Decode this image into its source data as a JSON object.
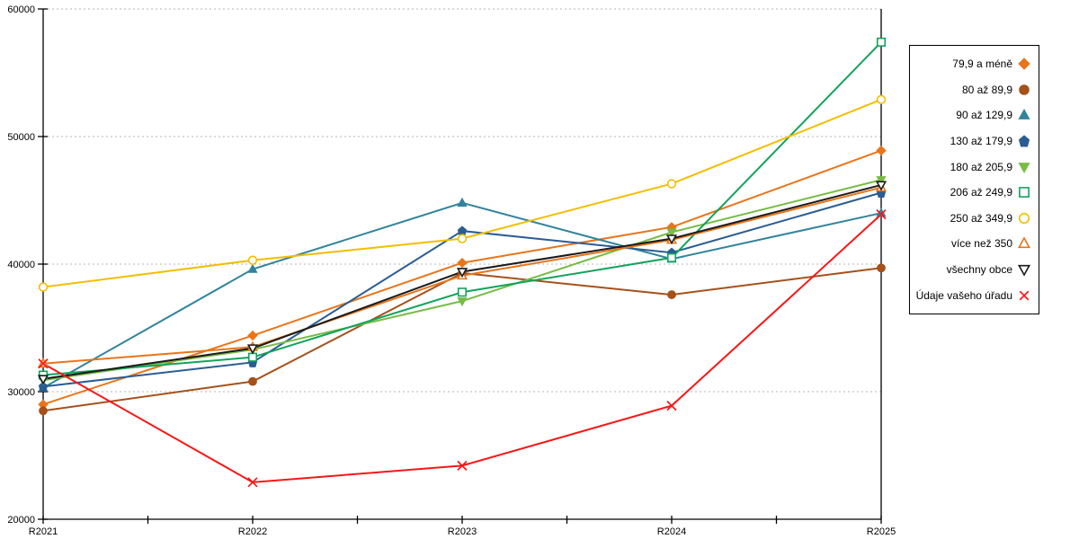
{
  "chart_data": {
    "type": "line",
    "title": "",
    "xlabel": "",
    "ylabel": "",
    "x": [
      "R2021",
      "R2022",
      "R2023",
      "R2024",
      "R2025"
    ],
    "ylim": [
      20000,
      60000
    ],
    "yticks": [
      "20000",
      "30000",
      "40000",
      "50000",
      "60000"
    ],
    "grid": "horizontal-dashed",
    "legend_position": "right",
    "series": [
      {
        "name": "79,9 a méně",
        "marker": "diamond",
        "fill": "filled",
        "color": "#E8751A",
        "values": [
          29000,
          34400,
          40100,
          42900,
          48900
        ]
      },
      {
        "name": "80 až 89,9",
        "marker": "circle",
        "fill": "filled",
        "color": "#A5511B",
        "values": [
          28500,
          30800,
          39300,
          37600,
          39700
        ]
      },
      {
        "name": "90 až 129,9",
        "marker": "triangle-up",
        "fill": "filled",
        "color": "#31849B",
        "values": [
          30300,
          39600,
          44800,
          40400,
          44000
        ]
      },
      {
        "name": "130 až 179,9",
        "marker": "pentagon",
        "fill": "filled",
        "color": "#2A5D93",
        "values": [
          30400,
          32300,
          42600,
          40900,
          45600
        ]
      },
      {
        "name": "180 až 205,9",
        "marker": "triangle-down",
        "fill": "filled",
        "color": "#77BC45",
        "values": [
          30900,
          33300,
          37100,
          42500,
          46600
        ]
      },
      {
        "name": "206 až 249,9",
        "marker": "square",
        "fill": "open",
        "color": "#12A35C",
        "values": [
          31300,
          32700,
          37800,
          40500,
          57400
        ]
      },
      {
        "name": "250 až 349,9",
        "marker": "circle",
        "fill": "open",
        "color": "#F2BE00",
        "values": [
          38200,
          40300,
          42000,
          46300,
          52900
        ]
      },
      {
        "name": "více než 350",
        "marker": "triangle-up",
        "fill": "open",
        "color": "#E8751A",
        "values": [
          32200,
          33500,
          39100,
          41900,
          46000
        ]
      },
      {
        "name": "všechny obce",
        "marker": "triangle-down",
        "fill": "open",
        "color": "#1A1A1A",
        "values": [
          31000,
          33400,
          39400,
          42000,
          46200
        ]
      },
      {
        "name": "Údaje vašeho úřadu",
        "marker": "x",
        "fill": "open",
        "color": "#F81616",
        "values": [
          32200,
          22900,
          24200,
          28900,
          43900
        ]
      }
    ]
  }
}
